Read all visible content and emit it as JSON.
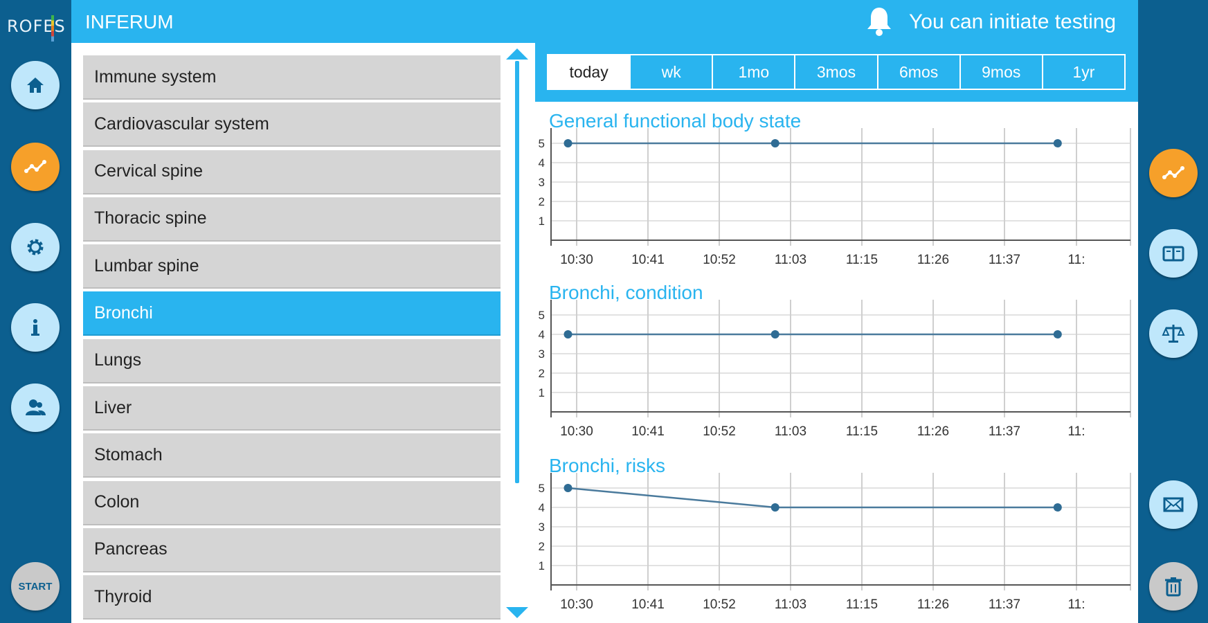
{
  "logo": {
    "text": "ROFES"
  },
  "header": {
    "title": "INFERUM",
    "status": "You can initiate testing"
  },
  "left_rail": {
    "items": [
      {
        "icon": "home-icon",
        "active": false
      },
      {
        "icon": "chart-icon",
        "active": true
      },
      {
        "icon": "gear-icon",
        "active": false
      },
      {
        "icon": "info-icon",
        "active": false
      },
      {
        "icon": "users-icon",
        "active": false
      }
    ],
    "start_label": "START"
  },
  "right_rail": {
    "items": [
      {
        "icon": "chart-icon",
        "active": true
      },
      {
        "icon": "book-icon",
        "active": false
      },
      {
        "icon": "scales-icon",
        "active": false
      },
      {
        "icon": "mail-icon",
        "active": false
      },
      {
        "icon": "trash-icon",
        "active": false
      }
    ]
  },
  "categories": [
    {
      "label": "Immune system",
      "selected": false
    },
    {
      "label": "Cardiovascular system",
      "selected": false
    },
    {
      "label": "Cervical spine",
      "selected": false
    },
    {
      "label": "Thoracic spine",
      "selected": false
    },
    {
      "label": "Lumbar spine",
      "selected": false
    },
    {
      "label": "Bronchi",
      "selected": true
    },
    {
      "label": "Lungs",
      "selected": false
    },
    {
      "label": "Liver",
      "selected": false
    },
    {
      "label": "Stomach",
      "selected": false
    },
    {
      "label": "Colon",
      "selected": false
    },
    {
      "label": "Pancreas",
      "selected": false
    },
    {
      "label": "Thyroid",
      "selected": false
    }
  ],
  "periods": [
    {
      "label": "today",
      "active": true
    },
    {
      "label": "wk",
      "active": false
    },
    {
      "label": "1mo",
      "active": false
    },
    {
      "label": "3mos",
      "active": false
    },
    {
      "label": "6mos",
      "active": false
    },
    {
      "label": "9mos",
      "active": false
    },
    {
      "label": "1yr",
      "active": false
    }
  ],
  "colors": {
    "accent": "#29b4ef",
    "rail": "#0c5f8f",
    "active_button": "#f6a02a",
    "line": "#4a7a9c",
    "point": "#2f6c94"
  },
  "chart_data": [
    {
      "type": "line",
      "title": "General functional body state",
      "x_ticks": [
        "10:30",
        "10:41",
        "10:52",
        "11:03",
        "11:15",
        "11:26",
        "11:37",
        "11:"
      ],
      "y_ticks": [
        1,
        2,
        3,
        4,
        5
      ],
      "ylim": [
        0,
        5.5
      ],
      "grid": true,
      "points": [
        {
          "x": "10:28",
          "y": 5
        },
        {
          "x": "11:01",
          "y": 5
        },
        {
          "x": "11:46",
          "y": 5
        }
      ]
    },
    {
      "type": "line",
      "title": "Bronchi, condition",
      "x_ticks": [
        "10:30",
        "10:41",
        "10:52",
        "11:03",
        "11:15",
        "11:26",
        "11:37",
        "11:"
      ],
      "y_ticks": [
        1,
        2,
        3,
        4,
        5
      ],
      "ylim": [
        0,
        5.5
      ],
      "grid": true,
      "points": [
        {
          "x": "10:28",
          "y": 4
        },
        {
          "x": "11:01",
          "y": 4
        },
        {
          "x": "11:46",
          "y": 4
        }
      ]
    },
    {
      "type": "line",
      "title": "Bronchi, risks",
      "x_ticks": [
        "10:30",
        "10:41",
        "10:52",
        "11:03",
        "11:15",
        "11:26",
        "11:37",
        "11:"
      ],
      "y_ticks": [
        1,
        2,
        3,
        4,
        5
      ],
      "ylim": [
        0,
        5.5
      ],
      "grid": true,
      "points": [
        {
          "x": "10:28",
          "y": 5
        },
        {
          "x": "11:01",
          "y": 4
        },
        {
          "x": "11:46",
          "y": 4
        }
      ]
    }
  ]
}
